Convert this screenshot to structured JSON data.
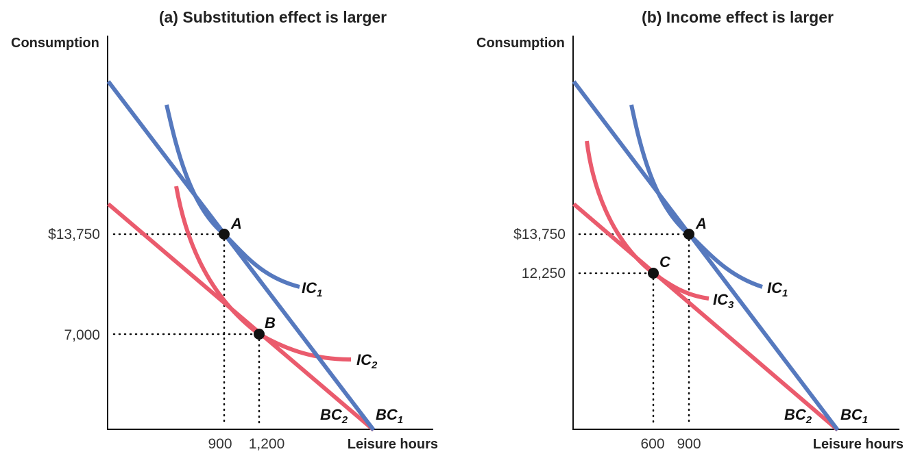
{
  "colors": {
    "blue": "#5679be",
    "red": "#ea5b6d",
    "axis": "#111111",
    "point": "#111111"
  },
  "chart_data": [
    {
      "type": "line",
      "title": "(a) Substitution effect is larger",
      "ylabel": "Consumption",
      "xlabel": "Leisure hours",
      "grid": false,
      "legend": "none",
      "xticks": [
        "900",
        "1,200"
      ],
      "yticks": [
        "$13,750",
        "7,000"
      ],
      "points": [
        {
          "label": "A",
          "x": 900,
          "y": 13750
        },
        {
          "label": "B",
          "x": 1200,
          "y": 7000
        }
      ],
      "series": [
        {
          "name": "BC",
          "sub": "1",
          "kind": "budget constraint",
          "color": "blue"
        },
        {
          "name": "BC",
          "sub": "2",
          "kind": "budget constraint",
          "color": "red"
        },
        {
          "name": "IC",
          "sub": "1",
          "kind": "indifference curve",
          "color": "blue"
        },
        {
          "name": "IC",
          "sub": "2",
          "kind": "indifference curve",
          "color": "red"
        }
      ]
    },
    {
      "type": "line",
      "title": "(b) Income effect is larger",
      "ylabel": "Consumption",
      "xlabel": "Leisure hours",
      "grid": false,
      "legend": "none",
      "xticks": [
        "600",
        "900"
      ],
      "yticks": [
        "$13,750",
        "12,250"
      ],
      "points": [
        {
          "label": "A",
          "x": 900,
          "y": 13750
        },
        {
          "label": "C",
          "x": 600,
          "y": 12250
        }
      ],
      "series": [
        {
          "name": "BC",
          "sub": "1",
          "kind": "budget constraint",
          "color": "blue"
        },
        {
          "name": "BC",
          "sub": "2",
          "kind": "budget constraint",
          "color": "red"
        },
        {
          "name": "IC",
          "sub": "1",
          "kind": "indifference curve",
          "color": "blue"
        },
        {
          "name": "IC",
          "sub": "3",
          "kind": "indifference curve",
          "color": "red"
        }
      ]
    }
  ]
}
